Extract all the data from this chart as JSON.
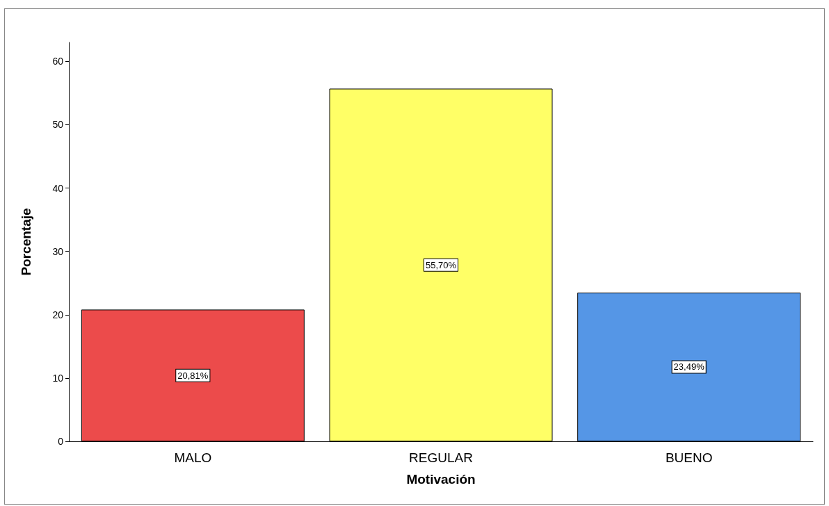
{
  "chart_data": {
    "type": "bar",
    "xlabel": "Motivación",
    "ylabel": "Porcentaje",
    "categories": [
      "MALO",
      "REGULAR",
      "BUENO"
    ],
    "values": [
      20.81,
      55.7,
      23.49
    ],
    "colors": [
      "#ec4b4b",
      "#ffff66",
      "#5596e6"
    ],
    "value_labels": [
      "20,81%",
      "55,70%",
      "23,49%"
    ],
    "ylim": [
      0,
      63
    ],
    "yticks": [
      0,
      10,
      20,
      30,
      40,
      50,
      60
    ]
  }
}
